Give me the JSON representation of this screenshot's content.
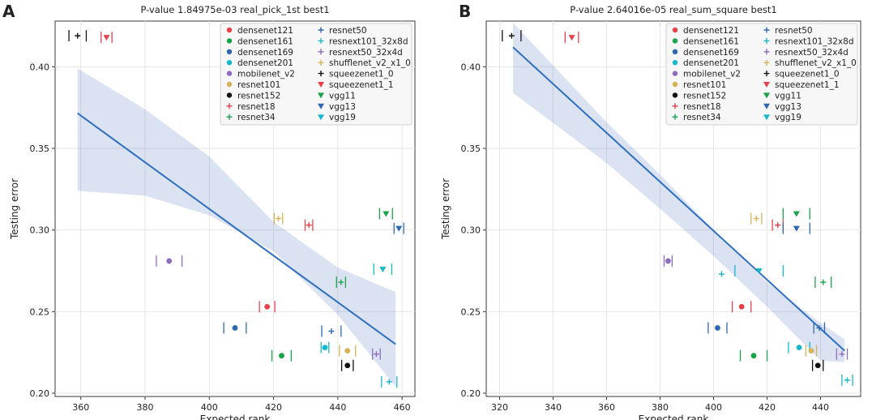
{
  "legend_models": [
    {
      "name": "densenet121",
      "color": "#e8414a",
      "marker": "circle"
    },
    {
      "name": "densenet161",
      "color": "#17a34a",
      "marker": "circle"
    },
    {
      "name": "densenet169",
      "color": "#2f68b0",
      "marker": "circle"
    },
    {
      "name": "densenet201",
      "color": "#17b7cc",
      "marker": "circle"
    },
    {
      "name": "mobilenet_v2",
      "color": "#8e6bbf",
      "marker": "circle"
    },
    {
      "name": "resnet101",
      "color": "#d7b257",
      "marker": "circle"
    },
    {
      "name": "resnet152",
      "color": "#111111",
      "marker": "circle"
    },
    {
      "name": "resnet18",
      "color": "#e8414a",
      "marker": "plus"
    },
    {
      "name": "resnet34",
      "color": "#17a34a",
      "marker": "plus"
    },
    {
      "name": "resnet50",
      "color": "#2f68b0",
      "marker": "plus"
    },
    {
      "name": "resnext101_32x8d",
      "color": "#17b7cc",
      "marker": "plus"
    },
    {
      "name": "resnext50_32x4d",
      "color": "#8e6bbf",
      "marker": "plus"
    },
    {
      "name": "shufflenet_v2_x1_0",
      "color": "#d7b257",
      "marker": "plus"
    },
    {
      "name": "squeezenet1_0",
      "color": "#111111",
      "marker": "plus"
    },
    {
      "name": "squeezenet1_1",
      "color": "#e8414a",
      "marker": "triangle"
    },
    {
      "name": "vgg11",
      "color": "#17a34a",
      "marker": "triangle"
    },
    {
      "name": "vgg13",
      "color": "#2f68b0",
      "marker": "triangle"
    },
    {
      "name": "vgg19",
      "color": "#17b7cc",
      "marker": "triangle"
    }
  ],
  "chart_data": [
    {
      "panel_label": "A",
      "type": "scatter",
      "title": "P-value 1.84975e-03 real_pick_1st best1",
      "xlabel": "Expected rank",
      "ylabel": "Testing error",
      "xlim": [
        352,
        464
      ],
      "ylim": [
        0.198,
        0.428
      ],
      "xticks": [
        360,
        380,
        400,
        420,
        440,
        460
      ],
      "yticks": [
        0.2,
        0.25,
        0.3,
        0.35,
        0.4
      ],
      "grid": true,
      "legend_position": "top-right",
      "points": [
        {
          "model": "squeezenet1_0",
          "x": 359,
          "y": 0.419,
          "err": 2.7
        },
        {
          "model": "squeezenet1_1",
          "x": 368,
          "y": 0.418,
          "err": 1.7
        },
        {
          "model": "mobilenet_v2",
          "x": 387.5,
          "y": 0.281,
          "err": 4
        },
        {
          "model": "densenet169",
          "x": 408,
          "y": 0.24,
          "err": 3.5
        },
        {
          "model": "densenet121",
          "x": 418,
          "y": 0.253,
          "err": 2.4
        },
        {
          "model": "shufflenet_v2_x1_0",
          "x": 421.5,
          "y": 0.307,
          "err": 1.3
        },
        {
          "model": "densenet161",
          "x": 422.5,
          "y": 0.223,
          "err": 3
        },
        {
          "model": "resnet18",
          "x": 431,
          "y": 0.303,
          "err": 1.2
        },
        {
          "model": "densenet201",
          "x": 436,
          "y": 0.228,
          "err": 1.2
        },
        {
          "model": "resnet50",
          "x": 438,
          "y": 0.238,
          "err": 3
        },
        {
          "model": "resnet34",
          "x": 441,
          "y": 0.268,
          "err": 1.4
        },
        {
          "model": "resnet152",
          "x": 443,
          "y": 0.217,
          "err": 1.8
        },
        {
          "model": "resnet101",
          "x": 443,
          "y": 0.226,
          "err": 2.5
        },
        {
          "model": "resnext50_32x4d",
          "x": 452,
          "y": 0.224,
          "err": 1.2
        },
        {
          "model": "vgg19",
          "x": 454,
          "y": 0.276,
          "err": 2.8
        },
        {
          "model": "resnext101_32x8d",
          "x": 456,
          "y": 0.207,
          "err": 2.4
        },
        {
          "model": "vgg11",
          "x": 455,
          "y": 0.31,
          "err": 2
        },
        {
          "model": "vgg13",
          "x": 459,
          "y": 0.301,
          "err": 1.5
        }
      ],
      "regression": {
        "x0": 359,
        "y0": 0.3715,
        "x1": 458,
        "y1": 0.23
      },
      "band": [
        [
          359,
          0.399,
          0.324
        ],
        [
          380,
          0.374,
          0.321
        ],
        [
          400,
          0.345,
          0.309
        ],
        [
          420,
          0.305,
          0.287
        ],
        [
          440,
          0.277,
          0.248
        ],
        [
          458,
          0.262,
          0.204
        ]
      ]
    },
    {
      "panel_label": "B",
      "type": "scatter",
      "title": "P-value 2.64016e-05 real_sum_square best1",
      "xlabel": "Expected rank",
      "ylabel": "Testing error",
      "xlim": [
        315,
        455
      ],
      "ylim": [
        0.198,
        0.428
      ],
      "xticks": [
        320,
        340,
        360,
        380,
        400,
        420,
        440
      ],
      "yticks": [
        0.2,
        0.25,
        0.3,
        0.35,
        0.4
      ],
      "grid": true,
      "legend_position": "top-right",
      "points": [
        {
          "model": "squeezenet1_0",
          "x": 324.5,
          "y": 0.419,
          "err": 3.5
        },
        {
          "model": "squeezenet1_1",
          "x": 347,
          "y": 0.418,
          "err": 2.5
        },
        {
          "model": "mobilenet_v2",
          "x": 383,
          "y": 0.281,
          "err": 1.5
        },
        {
          "model": "resnext101_32x8d",
          "x": 403,
          "y": 0.273,
          "err": 0.01
        },
        {
          "model": "densenet169",
          "x": 401.5,
          "y": 0.24,
          "err": 3.5
        },
        {
          "model": "densenet121",
          "x": 410.5,
          "y": 0.253,
          "err": 3.5
        },
        {
          "model": "densenet161",
          "x": 415,
          "y": 0.223,
          "err": 5
        },
        {
          "model": "shufflenet_v2_x1_0",
          "x": 416,
          "y": 0.307,
          "err": 2
        },
        {
          "model": "vgg19",
          "x": 417,
          "y": 0.275,
          "err": 9
        },
        {
          "model": "resnet18",
          "x": 424,
          "y": 0.303,
          "err": 2
        },
        {
          "model": "vgg11",
          "x": 431,
          "y": 0.31,
          "err": 5
        },
        {
          "model": "vgg13",
          "x": 431,
          "y": 0.301,
          "err": 5
        },
        {
          "model": "densenet201",
          "x": 432,
          "y": 0.228,
          "err": 4
        },
        {
          "model": "resnet101",
          "x": 436.5,
          "y": 0.226,
          "err": 2
        },
        {
          "model": "resnet152",
          "x": 439,
          "y": 0.217,
          "err": 2
        },
        {
          "model": "resnet50",
          "x": 439.5,
          "y": 0.24,
          "err": 2
        },
        {
          "model": "resnet34",
          "x": 441,
          "y": 0.268,
          "err": 3
        },
        {
          "model": "resnext50_32x4d",
          "x": 448,
          "y": 0.224,
          "err": 2
        },
        {
          "model": "resnext101_32x8d",
          "x": 450,
          "y": 0.208,
          "err": 2
        }
      ],
      "regression": {
        "x0": 325,
        "y0": 0.412,
        "x1": 449,
        "y1": 0.226
      },
      "band": [
        [
          325,
          0.427,
          0.384
        ],
        [
          360,
          0.366,
          0.341
        ],
        [
          380,
          0.334,
          0.313
        ],
        [
          400,
          0.3,
          0.284
        ],
        [
          420,
          0.268,
          0.253
        ],
        [
          440,
          0.243,
          0.22
        ],
        [
          449,
          0.233,
          0.219
        ]
      ]
    }
  ]
}
